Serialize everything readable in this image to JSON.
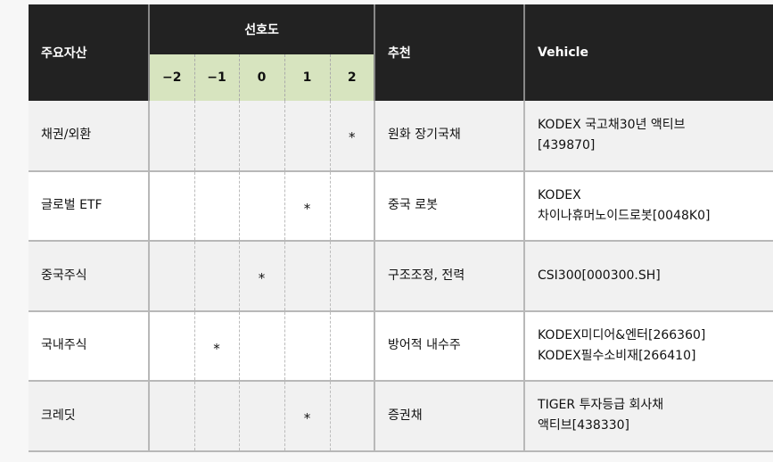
{
  "header": {
    "asset": "주요자산",
    "preference": "선호도",
    "scale": [
      "−2",
      "−1",
      "0",
      "1",
      "2"
    ],
    "recommendation": "추천",
    "vehicle": "Vehicle"
  },
  "marker": "*",
  "rows": [
    {
      "asset": "채권/외환",
      "preference": 2,
      "recommendation": "원화 장기국채",
      "vehicle": [
        "KODEX 국고채30년 액티브",
        "[439870]"
      ]
    },
    {
      "asset": "글로벌 ETF",
      "preference": 1,
      "recommendation": "중국 로봇",
      "vehicle": [
        "KODEX",
        "차이나휴머노이드로봇[0048K0]"
      ]
    },
    {
      "asset": "중국주식",
      "preference": 0,
      "recommendation": "구조조정, 전력",
      "vehicle": [
        "CSI300[000300.SH]"
      ]
    },
    {
      "asset": "국내주식",
      "preference": -1,
      "recommendation": "방어적 내수주",
      "vehicle": [
        "KODEX미디어&엔터[266360]",
        "KODEX필수소비재[266410]"
      ]
    },
    {
      "asset": "크레딧",
      "preference": 1,
      "recommendation": "증권채",
      "vehicle": [
        "TIGER 투자등급 회사채",
        "액티브[438330]"
      ]
    }
  ]
}
